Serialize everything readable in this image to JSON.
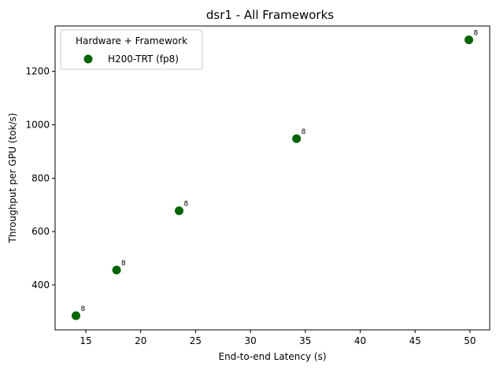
{
  "chart_data": {
    "type": "scatter",
    "title": "dsr1 - All Frameworks",
    "xlabel": "End-to-end Latency (s)",
    "ylabel": "Throughput per GPU (tok/s)",
    "xlim": [
      12.2,
      51.8
    ],
    "ylim": [
      232,
      1370
    ],
    "xticks": [
      15,
      20,
      25,
      30,
      35,
      40,
      45,
      50
    ],
    "yticks": [
      400,
      600,
      800,
      1000,
      1200
    ],
    "grid": false,
    "legend": {
      "title": "Hardware + Framework",
      "placement": "top-left"
    },
    "series": [
      {
        "name": "H200-TRT (fp8)",
        "color": "#006400",
        "points": [
          {
            "x": 14.1,
            "y": 285,
            "label": "8"
          },
          {
            "x": 17.8,
            "y": 456,
            "label": "8"
          },
          {
            "x": 23.5,
            "y": 678,
            "label": "8"
          },
          {
            "x": 34.2,
            "y": 948,
            "label": "8"
          },
          {
            "x": 49.9,
            "y": 1318,
            "label": "8"
          }
        ]
      }
    ]
  }
}
